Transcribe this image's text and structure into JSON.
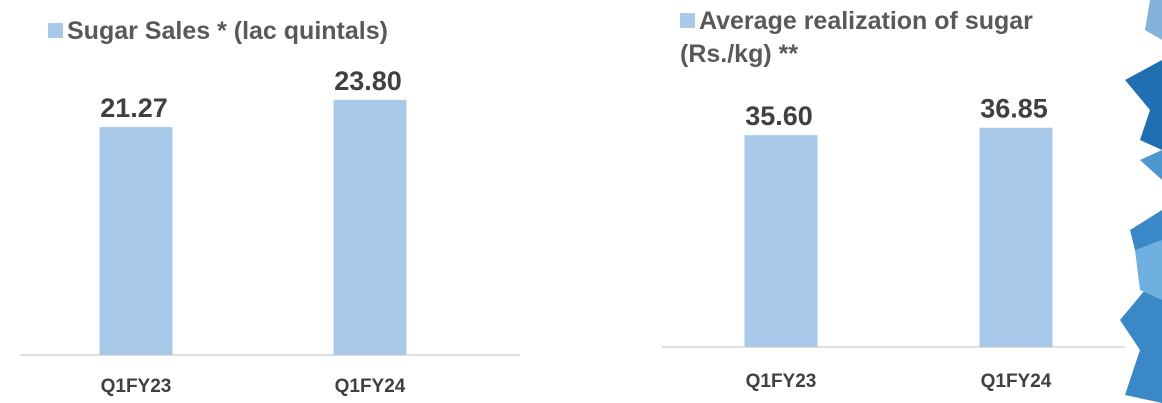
{
  "chart_data": [
    {
      "type": "bar",
      "categories": [
        "Q1FY23",
        "Q1FY24"
      ],
      "series": [
        {
          "name": "Sugar Sales * (lac quintals)",
          "color": "#a9c9eb",
          "values": [
            21.27,
            23.8
          ],
          "value_labels": [
            "21.27",
            "23.80"
          ]
        }
      ],
      "ylim": [
        0,
        25
      ]
    },
    {
      "type": "bar",
      "categories": [
        "Q1FY23",
        "Q1FY24"
      ],
      "series": [
        {
          "name": "Average realization of sugar (Rs./kg) **",
          "color": "#a9c9eb",
          "values": [
            35.6,
            36.85
          ],
          "value_labels": [
            "35.60",
            "36.85"
          ]
        }
      ],
      "ylim": [
        0,
        40
      ]
    }
  ]
}
